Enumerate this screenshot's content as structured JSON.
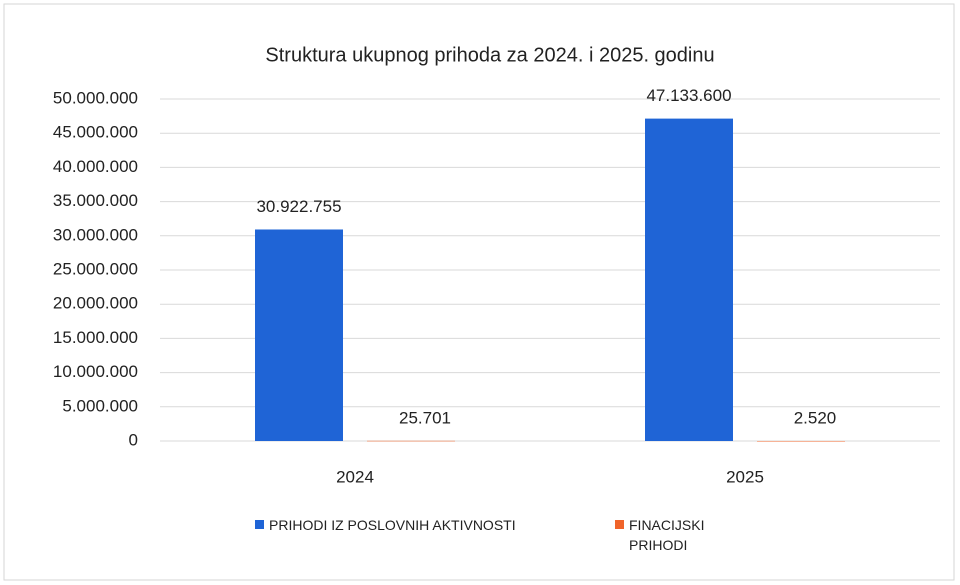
{
  "chart_data": {
    "type": "bar",
    "title": "Struktura ukupnog prihoda za 2024. i 2025. godinu",
    "categories": [
      "2024",
      "2025"
    ],
    "series": [
      {
        "name": "PRIHODI IZ POSLOVNIH AKTIVNOSTI",
        "color": "#1f64d6",
        "values": [
          30922755,
          47133600
        ],
        "value_labels": [
          "30.922.755",
          "47.133.600"
        ]
      },
      {
        "name": "FINACIJSKI PRIHODI",
        "color": "#f0642a",
        "values": [
          25701,
          2520
        ],
        "value_labels": [
          "25.701",
          "2.520"
        ]
      }
    ],
    "ylim": [
      0,
      50000000
    ],
    "yticks": [
      0,
      {
        "value": 5000000,
        "label": "5.000.000"
      },
      {
        "value": 10000000,
        "label": "10.000.000"
      },
      {
        "value": 15000000,
        "label": "15.000.000"
      },
      {
        "value": 20000000,
        "label": "20.000.000"
      },
      {
        "value": 25000000,
        "label": "25.000.000"
      },
      {
        "value": 30000000,
        "label": "30.000.000"
      },
      {
        "value": 35000000,
        "label": "35.000.000"
      },
      {
        "value": 40000000,
        "label": "40.000.000"
      },
      {
        "value": 45000000,
        "label": "45.000.000"
      },
      {
        "value": 50000000,
        "label": "50.000.000"
      }
    ],
    "grid": true
  }
}
